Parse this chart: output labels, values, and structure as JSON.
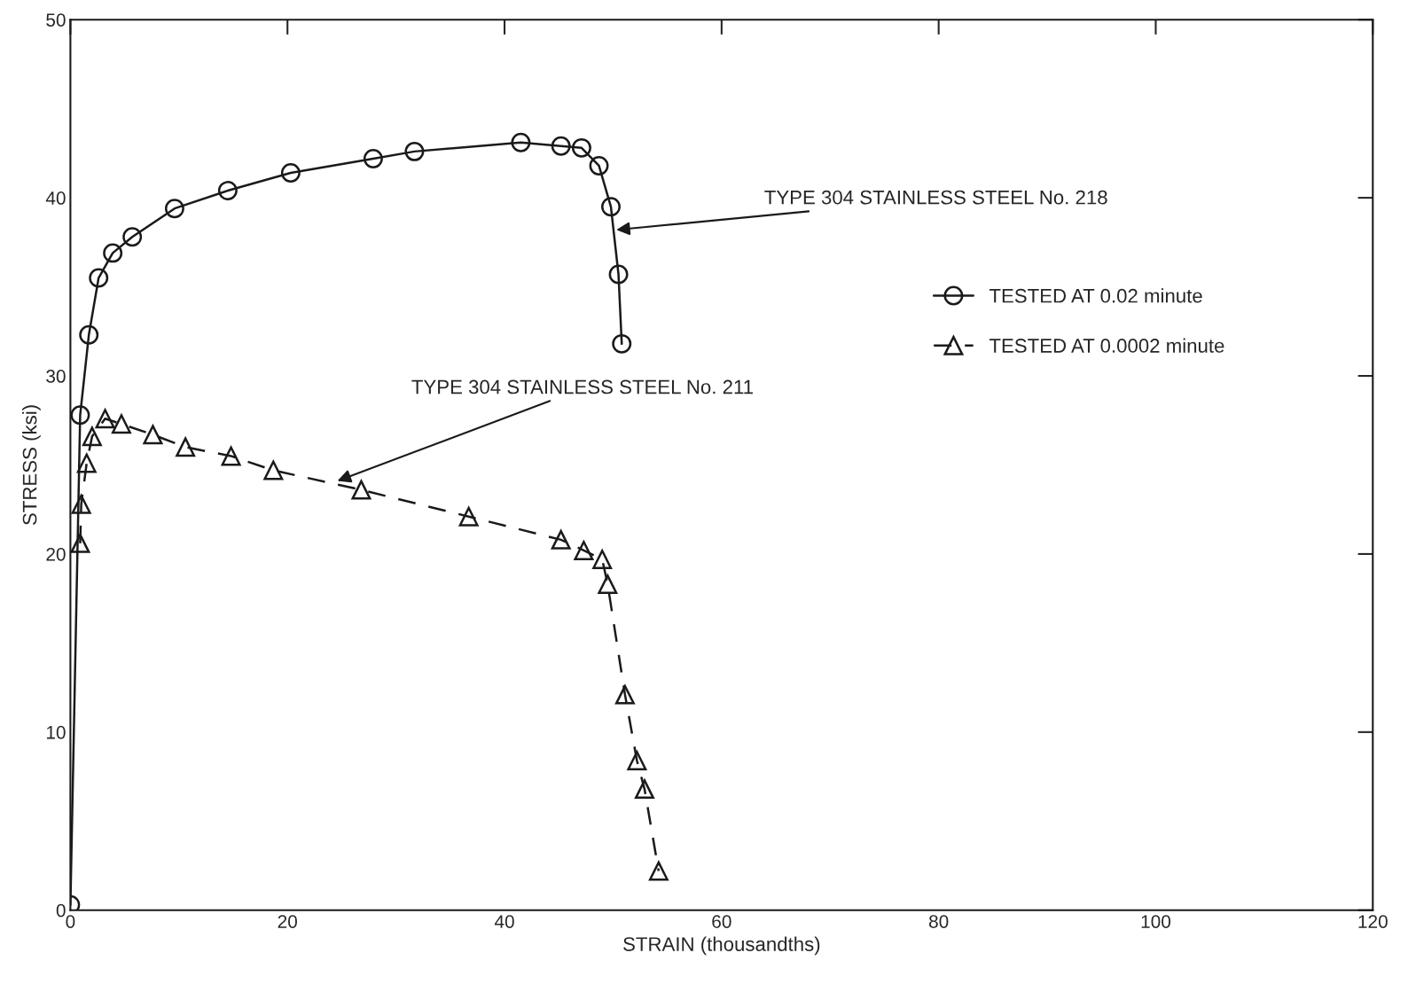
{
  "chart_data": {
    "type": "line",
    "xlabel": "STRAIN (thousandths)",
    "ylabel": "STRESS (ksi)",
    "xlim": [
      0,
      120
    ],
    "ylim": [
      0,
      50
    ],
    "xticks": [
      0,
      20,
      40,
      60,
      80,
      100,
      120
    ],
    "yticks": [
      0,
      10,
      20,
      30,
      40,
      50
    ],
    "grid": false,
    "legend": "right",
    "series": [
      {
        "name": "TESTED AT 0.02 minute",
        "color": "#1a1a1a",
        "marker": "circle",
        "line_style": "solid",
        "x": [
          0,
          0.9,
          1.7,
          2.6,
          3.9,
          5.7,
          9.6,
          14.5,
          20.3,
          27.9,
          31.7,
          41.5,
          45.2,
          47.1,
          48.7,
          49.8,
          50.5,
          50.8
        ],
        "values": [
          0.3,
          27.8,
          32.3,
          35.5,
          36.9,
          37.8,
          39.4,
          40.4,
          41.4,
          42.2,
          42.6,
          43.1,
          42.9,
          42.8,
          41.8,
          39.5,
          35.7,
          31.8
        ]
      },
      {
        "name": "TESTED AT 0.0002 minute",
        "color": "#1a1a1a",
        "marker": "triangle",
        "line_style": "dashed",
        "x": [
          0.9,
          1.0,
          1.5,
          2.0,
          3.2,
          4.7,
          7.6,
          10.6,
          14.8,
          18.7,
          26.8,
          36.7,
          45.2,
          47.3,
          49.0,
          49.5,
          51.1,
          52.2,
          52.9,
          54.2
        ],
        "values": [
          20.6,
          22.8,
          25.1,
          26.6,
          27.6,
          27.3,
          26.7,
          26.0,
          25.5,
          24.7,
          23.6,
          22.1,
          20.8,
          20.2,
          19.7,
          18.3,
          12.1,
          8.4,
          6.8,
          2.2
        ]
      }
    ],
    "annotations": [
      {
        "text": "TYPE 304 STAINLESS STEEL No. 218",
        "x": 50.3,
        "y": 38.2
      },
      {
        "text": "TYPE 304 STAINLESS STEEL No. 211",
        "x": 24.6,
        "y": 24.1
      }
    ]
  }
}
